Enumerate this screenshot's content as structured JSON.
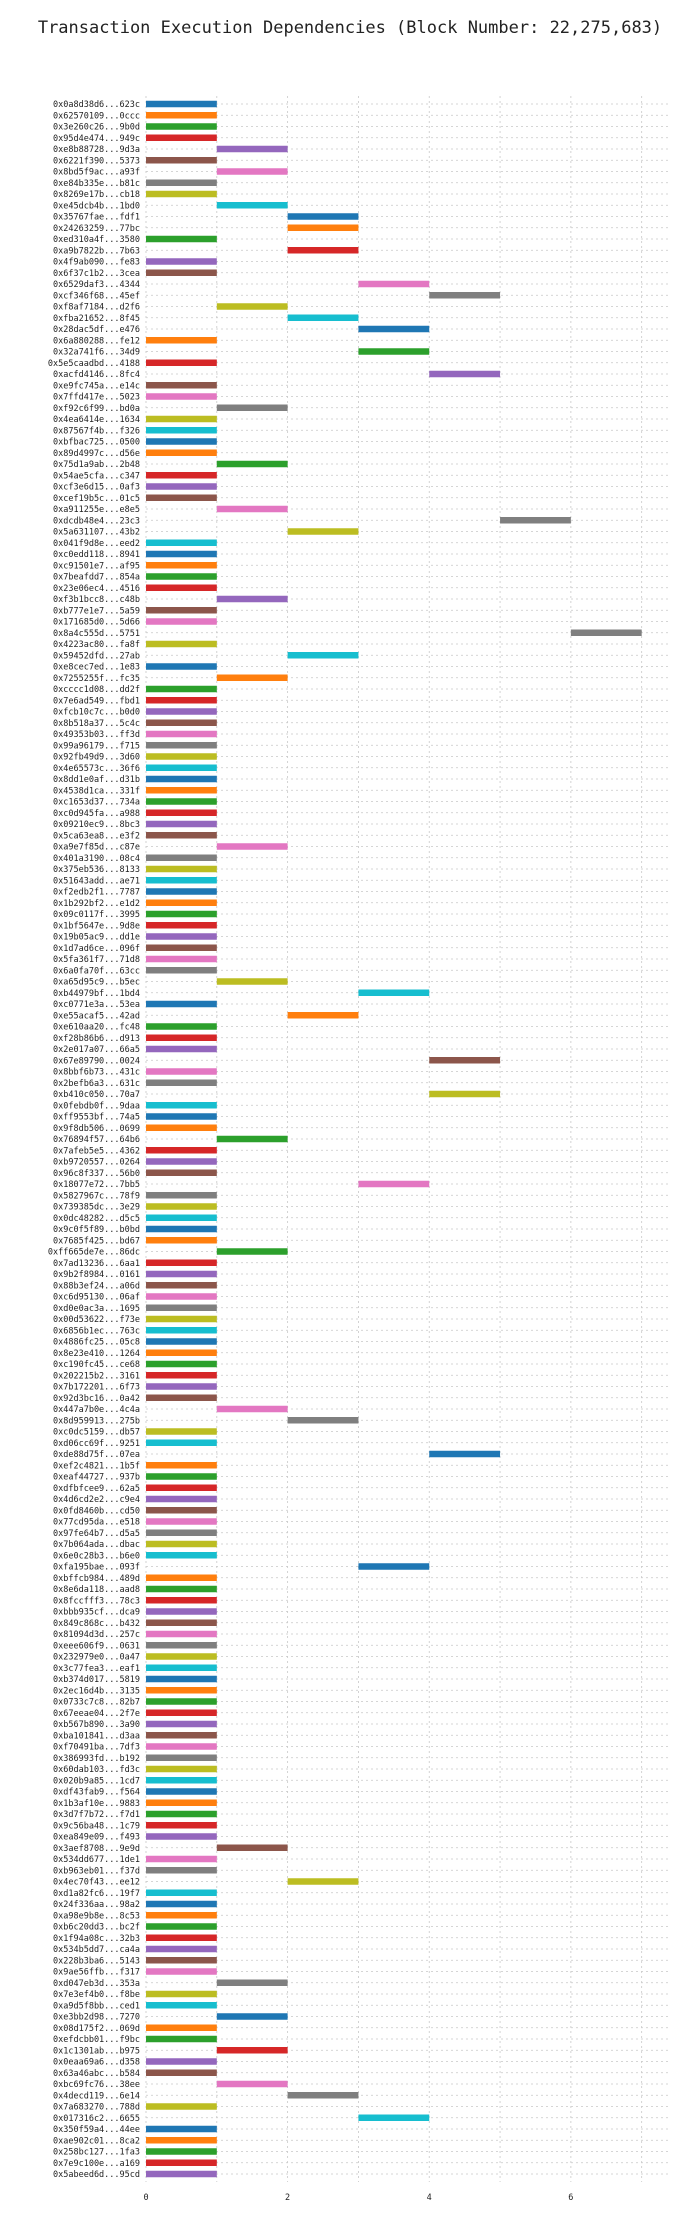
{
  "chart_data": {
    "type": "bar",
    "orientation": "horizontal",
    "title": "Transaction Execution Dependencies (Block Number: 22,275,683)",
    "xlabel": "",
    "ylabel": "",
    "xlim": [
      0,
      7.4
    ],
    "x_ticks": [
      0,
      2,
      4,
      6
    ],
    "grid": true,
    "palette": [
      "#1f77b4",
      "#ff7f0e",
      "#2ca02c",
      "#d62728",
      "#9467bd",
      "#8c564b",
      "#e377c2",
      "#7f7f7f",
      "#bcbd22",
      "#17becf"
    ],
    "transactions": [
      {
        "label": "0x0a8d38d6...623c",
        "start": 0
      },
      {
        "label": "0x62570109...0ccc",
        "start": 0
      },
      {
        "label": "0x3e260c26...9b0d",
        "start": 0
      },
      {
        "label": "0x95d4e474...949c",
        "start": 0
      },
      {
        "label": "0xe8b88728...9d3a",
        "start": 1
      },
      {
        "label": "0x6221f390...5373",
        "start": 0
      },
      {
        "label": "0x8bd5f9ac...a93f",
        "start": 1
      },
      {
        "label": "0xe84b335e...b81c",
        "start": 0
      },
      {
        "label": "0x8269e17b...cb18",
        "start": 0
      },
      {
        "label": "0xe45dcb4b...1bd0",
        "start": 1
      },
      {
        "label": "0x35767fae...fdf1",
        "start": 2
      },
      {
        "label": "0x24263259...77bc",
        "start": 2
      },
      {
        "label": "0xed310a4f...3580",
        "start": 0
      },
      {
        "label": "0xa9b7822b...7b63",
        "start": 2
      },
      {
        "label": "0x4f9ab090...fe83",
        "start": 0
      },
      {
        "label": "0x6f37c1b2...3cea",
        "start": 0
      },
      {
        "label": "0x6529daf3...4344",
        "start": 3
      },
      {
        "label": "0xcf346f68...45ef",
        "start": 4
      },
      {
        "label": "0xf8af7184...d2f6",
        "start": 1
      },
      {
        "label": "0xfba21652...8f45",
        "start": 2
      },
      {
        "label": "0x28dac5df...e476",
        "start": 3
      },
      {
        "label": "0x6a880288...fe12",
        "start": 0
      },
      {
        "label": "0x32a741f6...34d9",
        "start": 3
      },
      {
        "label": "0x5e5caadbd...4188",
        "start": 0
      },
      {
        "label": "0xacfd4146...8fc4",
        "start": 4
      },
      {
        "label": "0xe9fc745a...e14c",
        "start": 0
      },
      {
        "label": "0x7ffd417e...5023",
        "start": 0
      },
      {
        "label": "0xf92c6f99...bd0a",
        "start": 1
      },
      {
        "label": "0x4ea6414e...1634",
        "start": 0
      },
      {
        "label": "0x87567f4b...f326",
        "start": 0
      },
      {
        "label": "0xbfbac725...0500",
        "start": 0
      },
      {
        "label": "0x89d4997c...d56e",
        "start": 0
      },
      {
        "label": "0x75d1a9ab...2b48",
        "start": 1
      },
      {
        "label": "0x54ae5cfa...c347",
        "start": 0
      },
      {
        "label": "0xcf3e6d15...0af3",
        "start": 0
      },
      {
        "label": "0xcef19b5c...01c5",
        "start": 0
      },
      {
        "label": "0xa911255e...e8e5",
        "start": 1
      },
      {
        "label": "0xdcdb48e4...23c3",
        "start": 5
      },
      {
        "label": "0x5a631107...43b2",
        "start": 2
      },
      {
        "label": "0x041f9d8e...eed2",
        "start": 0
      },
      {
        "label": "0xc0edd118...8941",
        "start": 0
      },
      {
        "label": "0xc91501e7...af95",
        "start": 0
      },
      {
        "label": "0x7beafdd7...854a",
        "start": 0
      },
      {
        "label": "0x23e06ec4...4516",
        "start": 0
      },
      {
        "label": "0xf3b1bcc8...c48b",
        "start": 1
      },
      {
        "label": "0xb777e1e7...5a59",
        "start": 0
      },
      {
        "label": "0x171685d0...5d66",
        "start": 0
      },
      {
        "label": "0x8a4c555d...5751",
        "start": 6
      },
      {
        "label": "0x4223ac80...fa8f",
        "start": 0
      },
      {
        "label": "0x59452dfd...27ab",
        "start": 2
      },
      {
        "label": "0xe8cec7ed...1e83",
        "start": 0
      },
      {
        "label": "0x7255255f...fc35",
        "start": 1
      },
      {
        "label": "0xcccc1d08...dd2f",
        "start": 0
      },
      {
        "label": "0x7e6ad549...fbd1",
        "start": 0
      },
      {
        "label": "0xfcb10c7c...b0d0",
        "start": 0
      },
      {
        "label": "0x8b518a37...5c4c",
        "start": 0
      },
      {
        "label": "0x49353b03...ff3d",
        "start": 0
      },
      {
        "label": "0x99a96179...f715",
        "start": 0
      },
      {
        "label": "0x92fb49d9...3d60",
        "start": 0
      },
      {
        "label": "0x4e65573c...36f6",
        "start": 0
      },
      {
        "label": "0x8dd1e0af...d31b",
        "start": 0
      },
      {
        "label": "0x4538d1ca...331f",
        "start": 0
      },
      {
        "label": "0xc1653d37...734a",
        "start": 0
      },
      {
        "label": "0xc0d945fa...a988",
        "start": 0
      },
      {
        "label": "0x09210ec9...8bc3",
        "start": 0
      },
      {
        "label": "0x5ca63ea8...e3f2",
        "start": 0
      },
      {
        "label": "0xa9e7f85d...c87e",
        "start": 1
      },
      {
        "label": "0x401a3190...08c4",
        "start": 0
      },
      {
        "label": "0x375eb536...8133",
        "start": 0
      },
      {
        "label": "0x51643add...ae71",
        "start": 0
      },
      {
        "label": "0xf2edb2f1...7787",
        "start": 0
      },
      {
        "label": "0x1b292bf2...e1d2",
        "start": 0
      },
      {
        "label": "0x09c0117f...3995",
        "start": 0
      },
      {
        "label": "0x1bf5647e...9d8e",
        "start": 0
      },
      {
        "label": "0x19b05ac9...dd1e",
        "start": 0
      },
      {
        "label": "0x1d7ad6ce...096f",
        "start": 0
      },
      {
        "label": "0x5fa361f7...71d8",
        "start": 0
      },
      {
        "label": "0x6a0fa70f...63cc",
        "start": 0
      },
      {
        "label": "0xa65d95c9...b5ec",
        "start": 1
      },
      {
        "label": "0xb44979bf...1bd4",
        "start": 3
      },
      {
        "label": "0xc0771e3a...53ea",
        "start": 0
      },
      {
        "label": "0xe55acaf5...42ad",
        "start": 2
      },
      {
        "label": "0xe610aa20...fc48",
        "start": 0
      },
      {
        "label": "0xf28b86b6...d913",
        "start": 0
      },
      {
        "label": "0x2e017a07...66a5",
        "start": 0
      },
      {
        "label": "0x67e89790...0024",
        "start": 4
      },
      {
        "label": "0x8bbf6b73...431c",
        "start": 0
      },
      {
        "label": "0x2befb6a3...631c",
        "start": 0
      },
      {
        "label": "0xb410c050...70a7",
        "start": 4
      },
      {
        "label": "0x0febdb0f...9daa",
        "start": 0
      },
      {
        "label": "0xff9553bf...74a5",
        "start": 0
      },
      {
        "label": "0x9f8db506...0699",
        "start": 0
      },
      {
        "label": "0x76894f57...64b6",
        "start": 1
      },
      {
        "label": "0x7afeb5e5...4362",
        "start": 0
      },
      {
        "label": "0xb9720557...0264",
        "start": 0
      },
      {
        "label": "0x96c8f337...56b0",
        "start": 0
      },
      {
        "label": "0x18077e72...7bb5",
        "start": 3
      },
      {
        "label": "0x5827967c...78f9",
        "start": 0
      },
      {
        "label": "0x739385dc...3e29",
        "start": 0
      },
      {
        "label": "0x0dc48282...d5c5",
        "start": 0
      },
      {
        "label": "0x9c0f5f89...b0bd",
        "start": 0
      },
      {
        "label": "0x7685f425...bd67",
        "start": 0
      },
      {
        "label": "0xff665de7e...86dc",
        "start": 1
      },
      {
        "label": "0x7ad13236...6aa1",
        "start": 0
      },
      {
        "label": "0x9b2f8984...0161",
        "start": 0
      },
      {
        "label": "0x88b3ef24...a06d",
        "start": 0
      },
      {
        "label": "0xc6d95130...06af",
        "start": 0
      },
      {
        "label": "0xd0e0ac3a...1695",
        "start": 0
      },
      {
        "label": "0x00d53622...f73e",
        "start": 0
      },
      {
        "label": "0x6856b1ec...763c",
        "start": 0
      },
      {
        "label": "0x4886fc25...05c8",
        "start": 0
      },
      {
        "label": "0x8e23e410...1264",
        "start": 0
      },
      {
        "label": "0xc190fc45...ce68",
        "start": 0
      },
      {
        "label": "0x202215b2...3161",
        "start": 0
      },
      {
        "label": "0x7b172201...6f73",
        "start": 0
      },
      {
        "label": "0x92d3bc16...0a42",
        "start": 0
      },
      {
        "label": "0x447a7b0e...4c4a",
        "start": 1
      },
      {
        "label": "0x8d959913...275b",
        "start": 2
      },
      {
        "label": "0xc0dc5159...db57",
        "start": 0
      },
      {
        "label": "0xd06cc69f...9251",
        "start": 0
      },
      {
        "label": "0xde88d75f...07ea",
        "start": 4
      },
      {
        "label": "0xef2c4821...1b5f",
        "start": 0
      },
      {
        "label": "0xeaf44727...937b",
        "start": 0
      },
      {
        "label": "0xdfbfcee9...62a5",
        "start": 0
      },
      {
        "label": "0x4d6cd2e2...c9e4",
        "start": 0
      },
      {
        "label": "0x0fd8460b...cd50",
        "start": 0
      },
      {
        "label": "0x77cd95da...e518",
        "start": 0
      },
      {
        "label": "0x97fe64b7...d5a5",
        "start": 0
      },
      {
        "label": "0x7b064ada...dbac",
        "start": 0
      },
      {
        "label": "0x6e0c28b3...b6e0",
        "start": 0
      },
      {
        "label": "0xfa195bae...093f",
        "start": 3
      },
      {
        "label": "0xbffcb984...489d",
        "start": 0
      },
      {
        "label": "0x8e6da118...aad8",
        "start": 0
      },
      {
        "label": "0x8fccfff3...78c3",
        "start": 0
      },
      {
        "label": "0xbbb935cf...dca9",
        "start": 0
      },
      {
        "label": "0x849c868c...b432",
        "start": 0
      },
      {
        "label": "0x81094d3d...257c",
        "start": 0
      },
      {
        "label": "0xeee606f9...0631",
        "start": 0
      },
      {
        "label": "0x232979e0...0a47",
        "start": 0
      },
      {
        "label": "0x3c77fea3...eaf1",
        "start": 0
      },
      {
        "label": "0xb374d017...5819",
        "start": 0
      },
      {
        "label": "0x2ec16d4b...3135",
        "start": 0
      },
      {
        "label": "0x0733c7c8...82b7",
        "start": 0
      },
      {
        "label": "0x67eeae04...2f7e",
        "start": 0
      },
      {
        "label": "0xb567b890...3a90",
        "start": 0
      },
      {
        "label": "0xba101841...d3aa",
        "start": 0
      },
      {
        "label": "0xf70491ba...7df3",
        "start": 0
      },
      {
        "label": "0x386993fd...b192",
        "start": 0
      },
      {
        "label": "0x60dab103...fd3c",
        "start": 0
      },
      {
        "label": "0x020b9a85...1cd7",
        "start": 0
      },
      {
        "label": "0xdf43fab9...f564",
        "start": 0
      },
      {
        "label": "0x1b3af10e...9883",
        "start": 0
      },
      {
        "label": "0x3d7f7b72...f7d1",
        "start": 0
      },
      {
        "label": "0x9c56ba48...1c79",
        "start": 0
      },
      {
        "label": "0xea849e09...f493",
        "start": 0
      },
      {
        "label": "0x3aef8708...9e9d",
        "start": 1
      },
      {
        "label": "0x534dd677...1de1",
        "start": 0
      },
      {
        "label": "0xb963eb01...f37d",
        "start": 0
      },
      {
        "label": "0x4ec70f43...ee12",
        "start": 2
      },
      {
        "label": "0xd1a82fc6...19f7",
        "start": 0
      },
      {
        "label": "0x24f336aa...98a2",
        "start": 0
      },
      {
        "label": "0xa98e9b8e...8c53",
        "start": 0
      },
      {
        "label": "0xb6c20dd3...bc2f",
        "start": 0
      },
      {
        "label": "0x1f94a08c...32b3",
        "start": 0
      },
      {
        "label": "0x534b5dd7...ca4a",
        "start": 0
      },
      {
        "label": "0x228b3ba6...5143",
        "start": 0
      },
      {
        "label": "0x9ae56ffb...f317",
        "start": 0
      },
      {
        "label": "0xd047eb3d...353a",
        "start": 1
      },
      {
        "label": "0x7e3ef4b0...f8be",
        "start": 0
      },
      {
        "label": "0xa9d5f8bb...ced1",
        "start": 0
      },
      {
        "label": "0xe3bb2d98...7270",
        "start": 1
      },
      {
        "label": "0x08d175f2...069d",
        "start": 0
      },
      {
        "label": "0xefdcbb01...f9bc",
        "start": 0
      },
      {
        "label": "0x1c1301ab...b975",
        "start": 1
      },
      {
        "label": "0x0eaa69a6...d358",
        "start": 0
      },
      {
        "label": "0x63a46abc...b584",
        "start": 0
      },
      {
        "label": "0xbc69fc76...38ee",
        "start": 1
      },
      {
        "label": "0x4decd119...6e14",
        "start": 2
      },
      {
        "label": "0x7a683270...788d",
        "start": 0
      },
      {
        "label": "0x017316c2...6655",
        "start": 3
      },
      {
        "label": "0x350f59a4...44ee",
        "start": 0
      },
      {
        "label": "0xae902c01...8ca2",
        "start": 0
      },
      {
        "label": "0x258bc127...1fa3",
        "start": 0
      },
      {
        "label": "0x7e9c100e...a169",
        "start": 0
      },
      {
        "label": "0x5abeed6d...95cd",
        "start": 0
      }
    ]
  }
}
